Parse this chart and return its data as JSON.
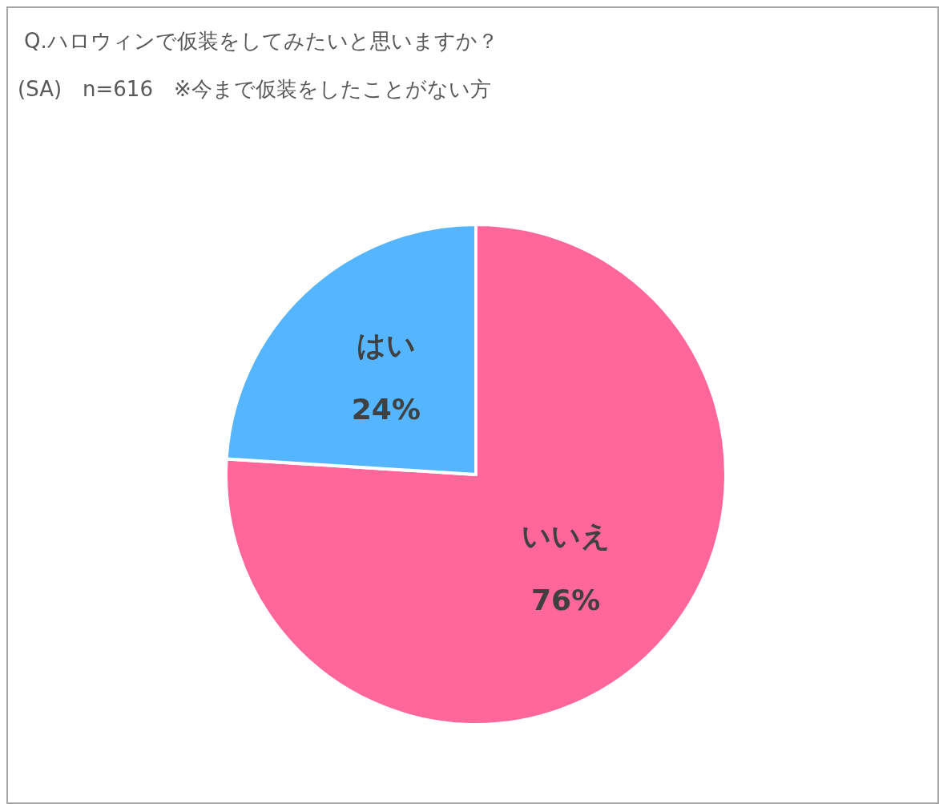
{
  "chart_data": {
    "type": "pie",
    "title": "Q.ハロウィンで仮装をしてみたいと思いますか？",
    "subtitle": "(SA)　n=616　※今まで仮装をしたことがない方",
    "categories": [
      "いいえ",
      "はい"
    ],
    "values": [
      76,
      24
    ],
    "colors": [
      "#ff6699",
      "#55b5ff"
    ],
    "value_labels": [
      "76%",
      "24%"
    ]
  }
}
